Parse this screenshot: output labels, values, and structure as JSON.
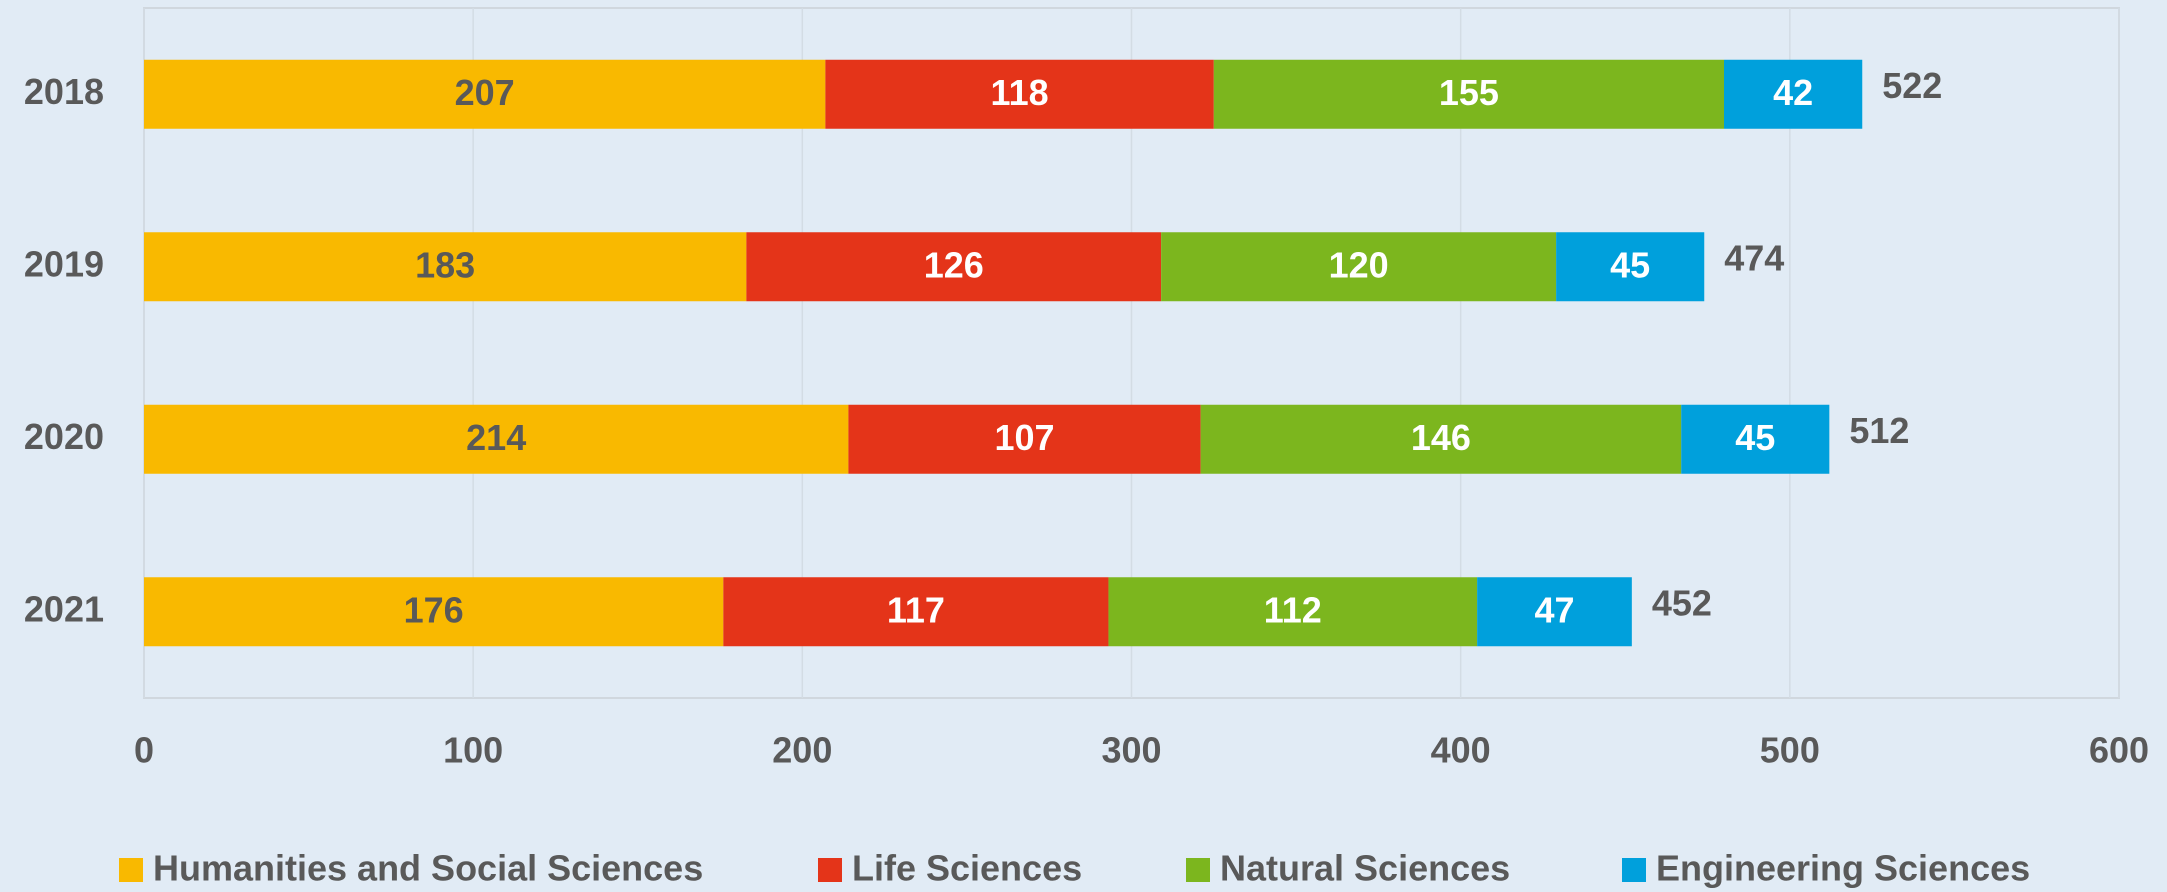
{
  "chart_data": {
    "type": "stacked_barh",
    "categories": [
      "2018",
      "2019",
      "2020",
      "2021"
    ],
    "series": [
      {
        "name": "Humanities and Social Sciences",
        "color": "#f9b900",
        "label_color": "#595959",
        "values": [
          207,
          183,
          214,
          176
        ]
      },
      {
        "name": "Life Sciences",
        "color": "#e43419",
        "label_color": "#ffffff",
        "values": [
          118,
          126,
          107,
          117
        ]
      },
      {
        "name": "Natural Sciences",
        "color": "#7cb61e",
        "label_color": "#ffffff",
        "values": [
          155,
          120,
          146,
          112
        ]
      },
      {
        "name": "Engineering Sciences",
        "color": "#00a0dc",
        "label_color": "#ffffff",
        "values": [
          42,
          45,
          45,
          47
        ]
      }
    ],
    "totals": [
      522,
      474,
      512,
      452
    ],
    "xlim": [
      0,
      600
    ],
    "xticks": [
      0,
      100,
      200,
      300,
      400,
      500,
      600
    ],
    "grid": true,
    "legend": "bottom"
  }
}
